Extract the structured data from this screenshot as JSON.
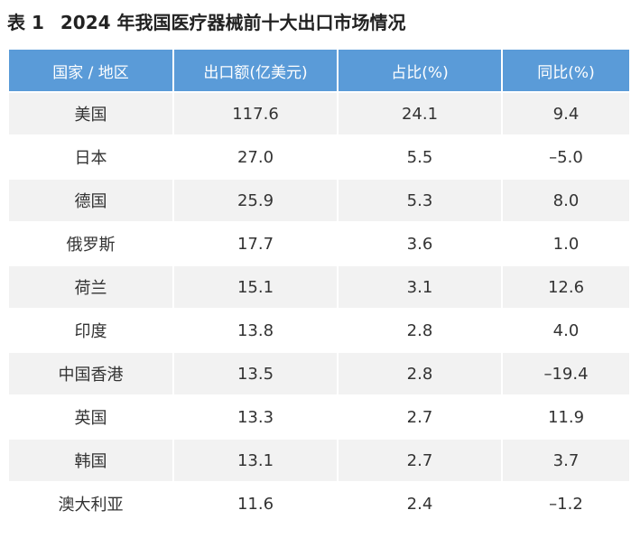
{
  "caption": {
    "label": "表 1",
    "title": "2024 年我国医疗器械前十大出口市场情况"
  },
  "table": {
    "headers": [
      "国家 / 地区",
      "出口额(亿美元)",
      "占比(%)",
      "同比(%)"
    ],
    "rows": [
      [
        "美国",
        "117.6",
        "24.1",
        "9.4"
      ],
      [
        "日本",
        "27.0",
        "5.5",
        "–5.0"
      ],
      [
        "德国",
        "25.9",
        "5.3",
        "8.0"
      ],
      [
        "俄罗斯",
        "17.7",
        "3.6",
        "1.0"
      ],
      [
        "荷兰",
        "15.1",
        "3.1",
        "12.6"
      ],
      [
        "印度",
        "13.8",
        "2.8",
        "4.0"
      ],
      [
        "中国香港",
        "13.5",
        "2.8",
        "–19.4"
      ],
      [
        "英国",
        "13.3",
        "2.7",
        "11.9"
      ],
      [
        "韩国",
        "13.1",
        "2.7",
        "3.7"
      ],
      [
        "澳大利亚",
        "11.6",
        "2.4",
        "–1.2"
      ]
    ]
  },
  "colors": {
    "header_bg": "#5a9bd8",
    "header_text": "#ffffff",
    "stripe_bg": "#f2f2f2"
  }
}
